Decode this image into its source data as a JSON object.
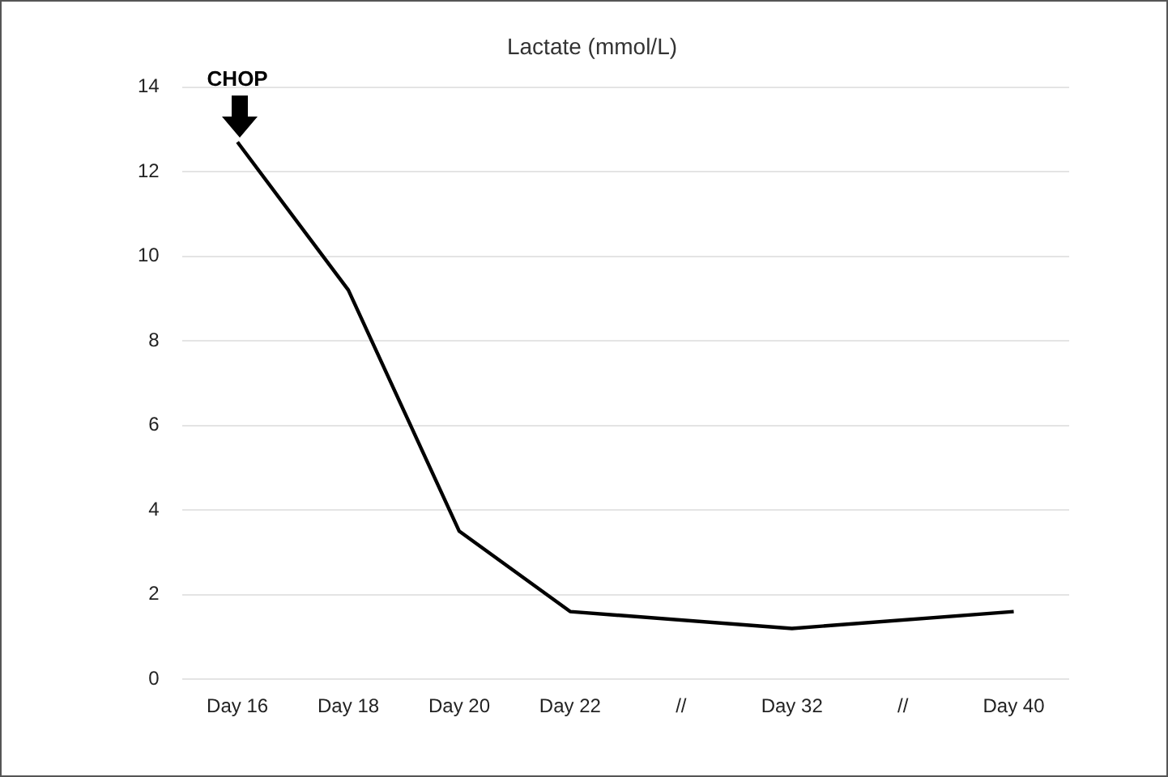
{
  "chart_data": {
    "type": "line",
    "title": "Lactate (mmol/L)",
    "categories": [
      "Day 16",
      "Day 18",
      "Day 20",
      "Day 22",
      "//",
      "Day 32",
      "//",
      "Day 40"
    ],
    "values": [
      12.7,
      9.2,
      3.5,
      1.6,
      null,
      1.2,
      null,
      1.6
    ],
    "color": "#000000",
    "ylim": [
      0,
      14
    ],
    "yticks": [
      0,
      2,
      4,
      6,
      8,
      10,
      12,
      14
    ],
    "grid": "y",
    "legend": false,
    "marker": "none",
    "line_style": "solid",
    "annotations": [
      {
        "text": "CHOP",
        "x": "Day 16",
        "y": 12.7
      }
    ]
  }
}
